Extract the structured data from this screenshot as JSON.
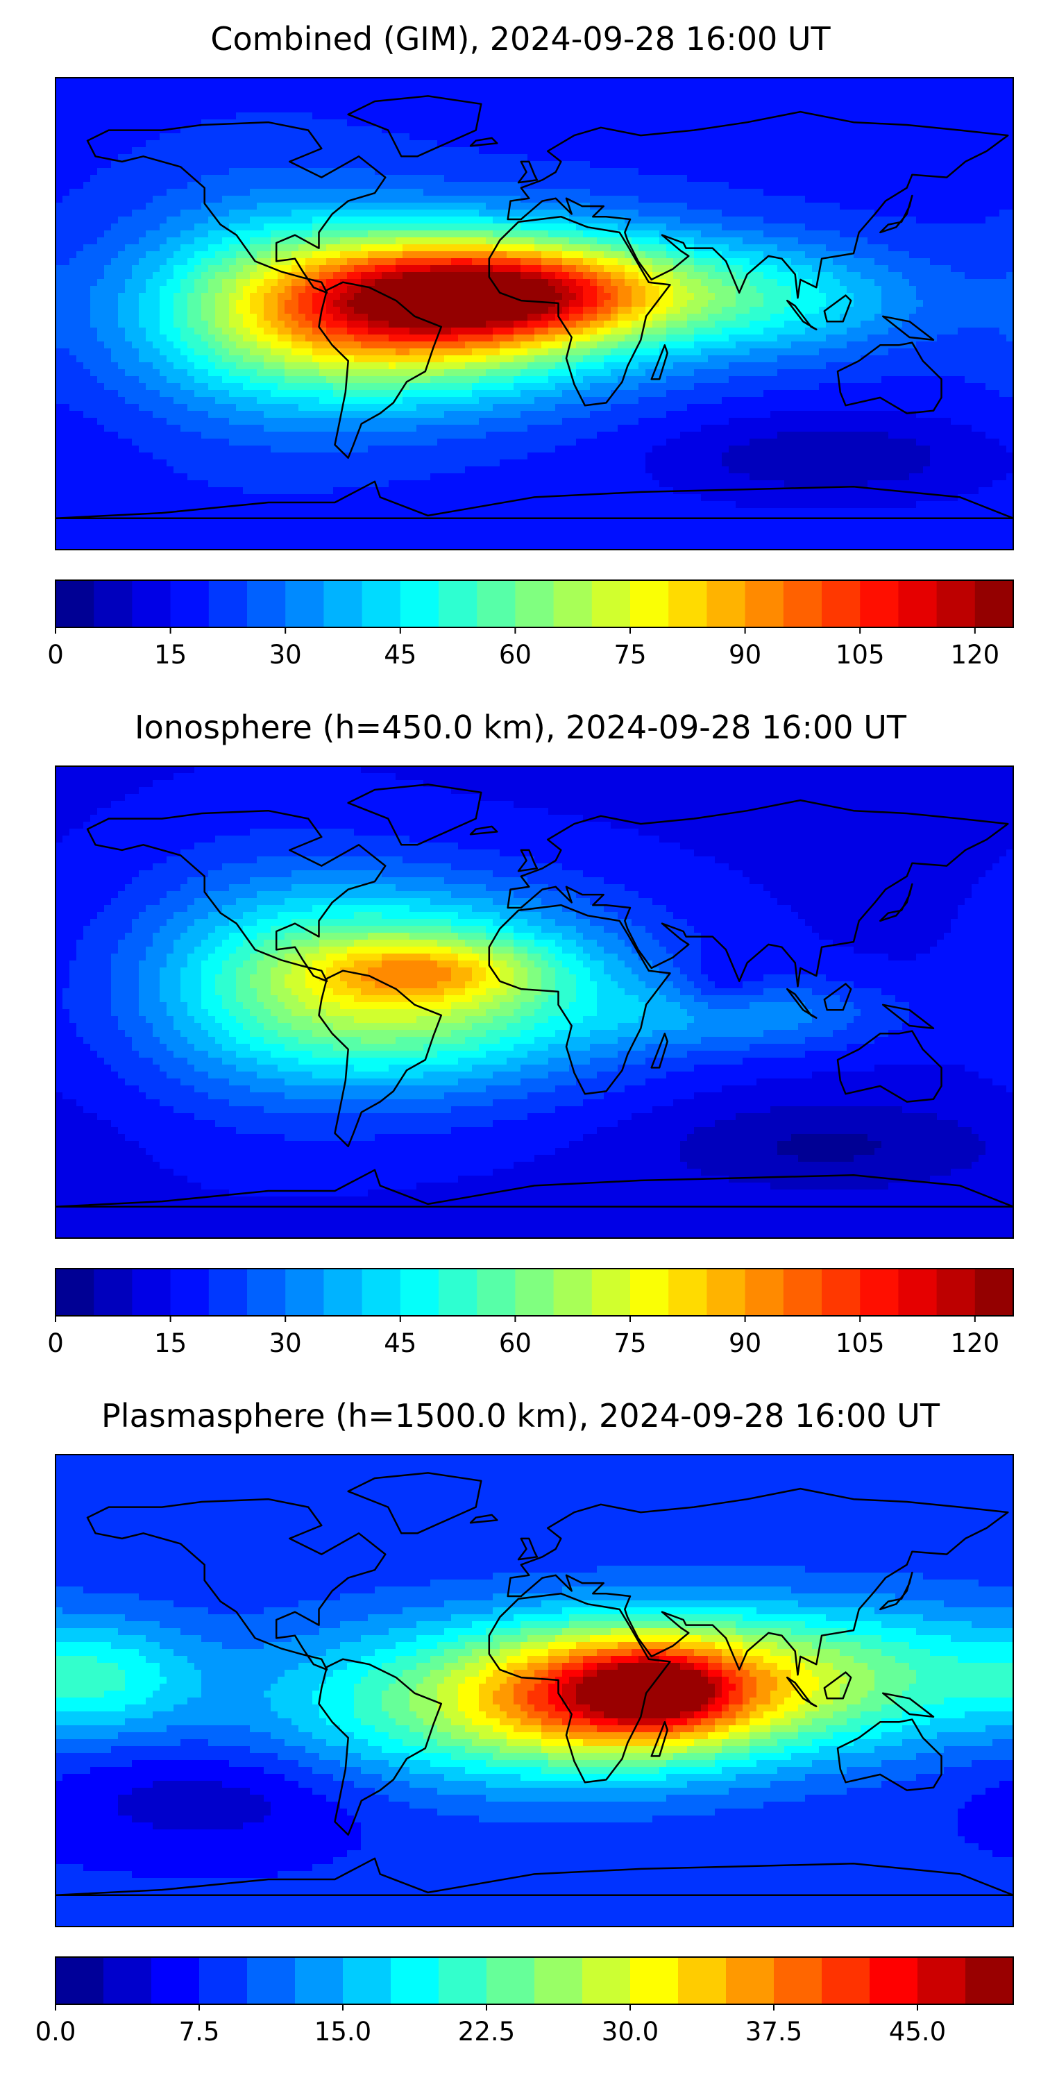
{
  "chart_data": [
    {
      "type": "heatmap",
      "title": "Combined (GIM), 2024-09-28 16:00 UT",
      "colorbar": {
        "range": [
          0,
          125
        ],
        "levels": 25,
        "ticks": [
          "0",
          "15",
          "30",
          "45",
          "60",
          "75",
          "90",
          "105",
          "120"
        ],
        "tick_values": [
          0,
          15,
          30,
          45,
          60,
          75,
          90,
          105,
          120
        ]
      },
      "field": {
        "background": 18,
        "blobs": [
          {
            "lon": -50,
            "lat": 0,
            "sx": 55,
            "sy": 22,
            "a": 70
          },
          {
            "lon": -15,
            "lat": 8,
            "sx": 45,
            "sy": 12,
            "a": 45
          },
          {
            "lon": -100,
            "lat": 5,
            "sx": 40,
            "sy": 35,
            "a": 15
          },
          {
            "lon": 15,
            "lat": 10,
            "sx": 50,
            "sy": 18,
            "a": 25
          },
          {
            "lon": 95,
            "lat": 5,
            "sx": 40,
            "sy": 15,
            "a": 22
          },
          {
            "lon": 110,
            "lat": -55,
            "sx": 45,
            "sy": 12,
            "a": -12
          }
        ]
      }
    },
    {
      "type": "heatmap",
      "title": "Ionosphere  (h=450.0 km), 2024-09-28 16:00 UT",
      "colorbar": {
        "range": [
          0,
          125
        ],
        "levels": 25,
        "ticks": [
          "0",
          "15",
          "30",
          "45",
          "60",
          "75",
          "90",
          "105",
          "120"
        ],
        "tick_values": [
          0,
          15,
          30,
          45,
          60,
          75,
          90,
          105,
          120
        ]
      },
      "field": {
        "background": 14,
        "blobs": [
          {
            "lon": -45,
            "lat": 5,
            "sx": 55,
            "sy": 25,
            "a": 55
          },
          {
            "lon": -40,
            "lat": 12,
            "sx": 30,
            "sy": 8,
            "a": 22
          },
          {
            "lon": -100,
            "lat": 10,
            "sx": 40,
            "sy": 35,
            "a": 15
          },
          {
            "lon": 80,
            "lat": -5,
            "sx": 40,
            "sy": 10,
            "a": 18
          },
          {
            "lon": 70,
            "lat": 5,
            "sx": 12,
            "sy": 8,
            "a": -10
          },
          {
            "lon": 110,
            "lat": -55,
            "sx": 45,
            "sy": 12,
            "a": -10
          }
        ]
      }
    },
    {
      "type": "heatmap",
      "title": "Plasmasphere (h=1500.0 km), 2024-09-28 16:00 UT",
      "colorbar": {
        "range": [
          0,
          50
        ],
        "levels": 20,
        "ticks": [
          "0.0",
          "7.5",
          "15.0",
          "22.5",
          "30.0",
          "37.5",
          "45.0"
        ],
        "tick_values": [
          0,
          7.5,
          15,
          22.5,
          30,
          37.5,
          45
        ]
      },
      "field": {
        "background": 8,
        "blobs": [
          {
            "lon": 40,
            "lat": 0,
            "sx": 40,
            "sy": 18,
            "a": 28
          },
          {
            "lon": 45,
            "lat": 0,
            "sx": 15,
            "sy": 8,
            "a": 12
          },
          {
            "lon": -20,
            "lat": -5,
            "sx": 60,
            "sy": 22,
            "a": 16
          },
          {
            "lon": 120,
            "lat": 5,
            "sx": 50,
            "sy": 20,
            "a": 14
          },
          {
            "lon": -160,
            "lat": 5,
            "sx": 25,
            "sy": 15,
            "a": 8
          },
          {
            "lon": -120,
            "lat": -40,
            "sx": 45,
            "sy": 15,
            "a": -5
          }
        ]
      }
    }
  ]
}
